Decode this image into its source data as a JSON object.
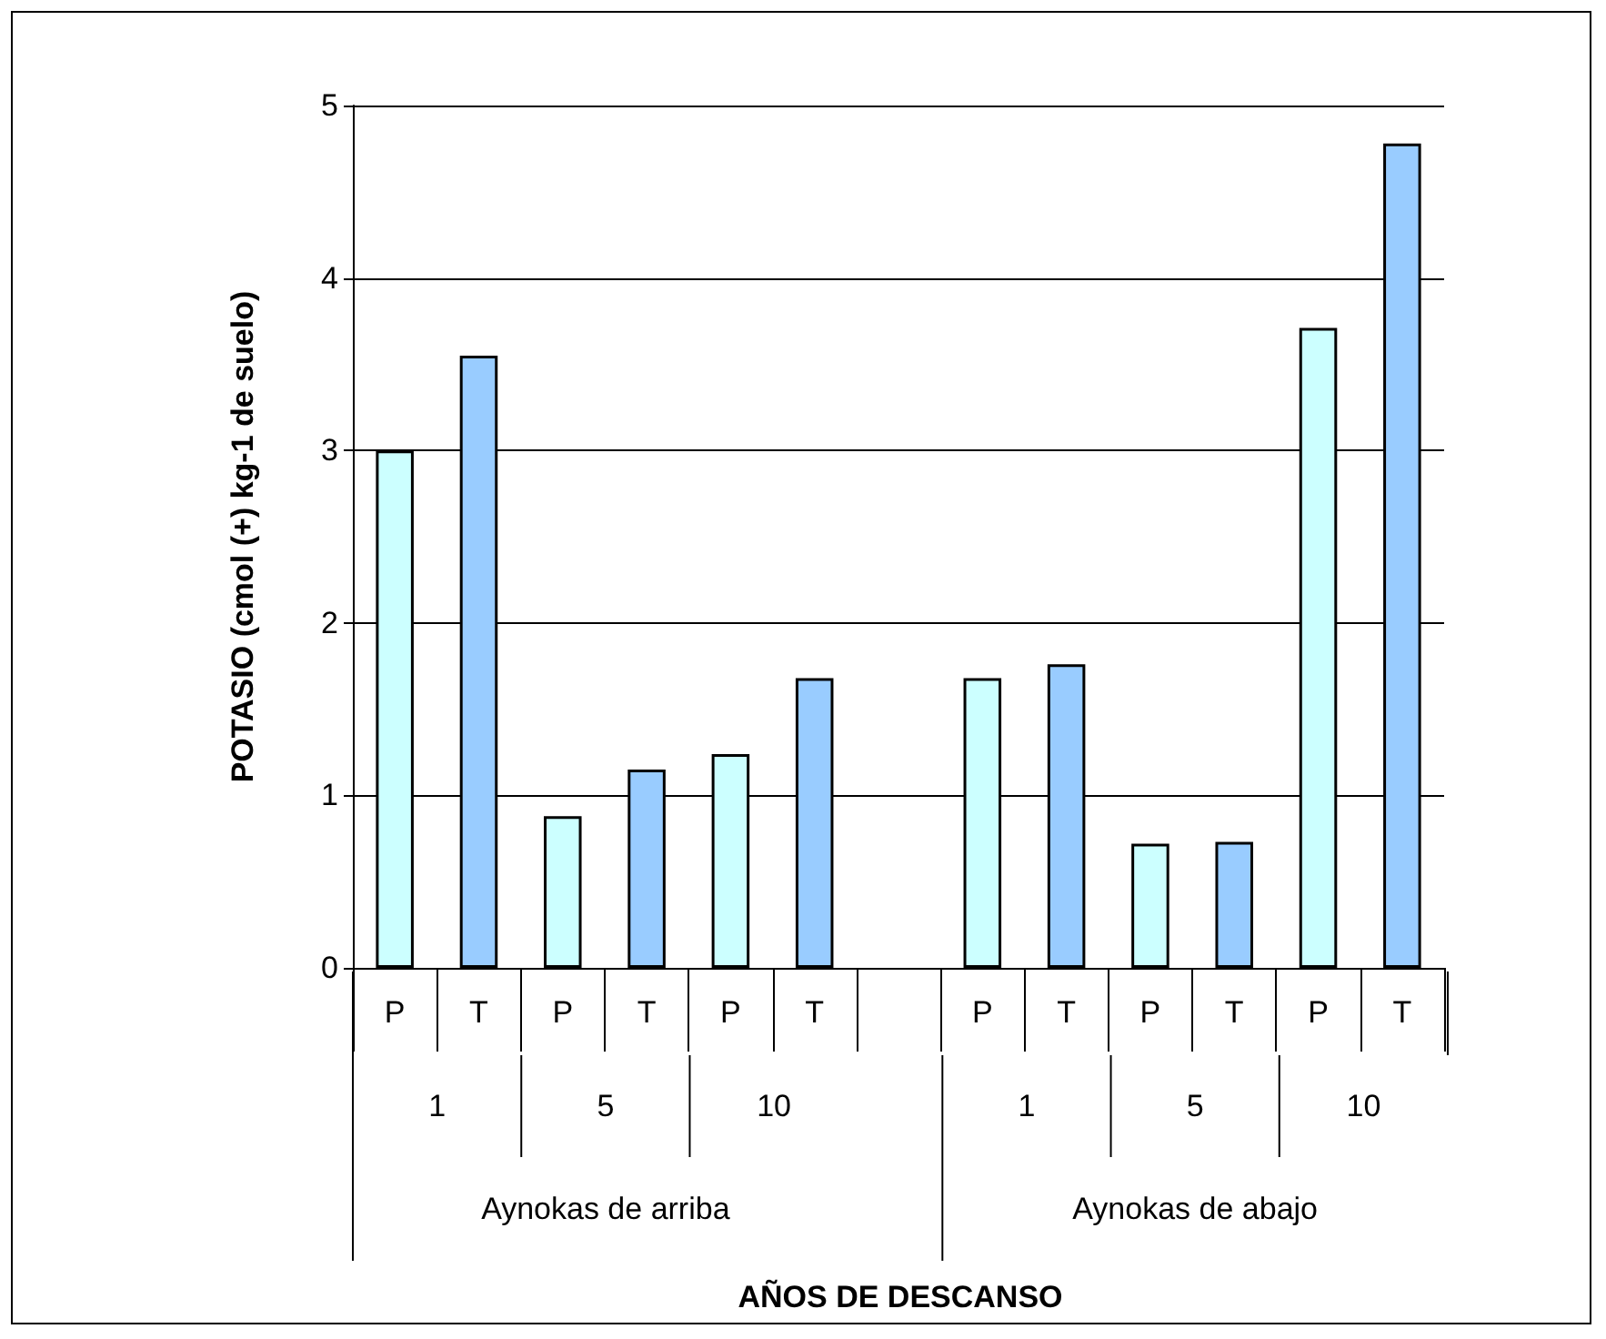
{
  "chart_data": {
    "type": "bar",
    "ylabel": "POTASIO (cmol (+) kg-1 de suelo)",
    "categories": [
      "P",
      "T",
      "P",
      "T",
      "P",
      "T",
      null,
      "P",
      "T",
      "P",
      "T",
      "P",
      "T"
    ],
    "series": [
      {
        "color": "#ccffff",
        "values": [
          3.0,
          null,
          0.88,
          null,
          1.24,
          null,
          null,
          1.68,
          null,
          0.72,
          null,
          3.71,
          null
        ]
      },
      {
        "color": "#99ccff",
        "values": [
          null,
          3.55,
          null,
          1.15,
          null,
          1.68,
          null,
          null,
          1.76,
          null,
          0.73,
          null,
          4.78
        ]
      }
    ],
    "ylim": [
      0,
      5
    ],
    "yticks": [
      0,
      1,
      2,
      3,
      4,
      5
    ],
    "grid": "y",
    "annotations": [
      "1",
      "5",
      "10",
      "1",
      "5",
      "10",
      "Aynokas de arriba",
      "Aynokas de abajo",
      "AÑOS DE DESCANSO"
    ]
  }
}
